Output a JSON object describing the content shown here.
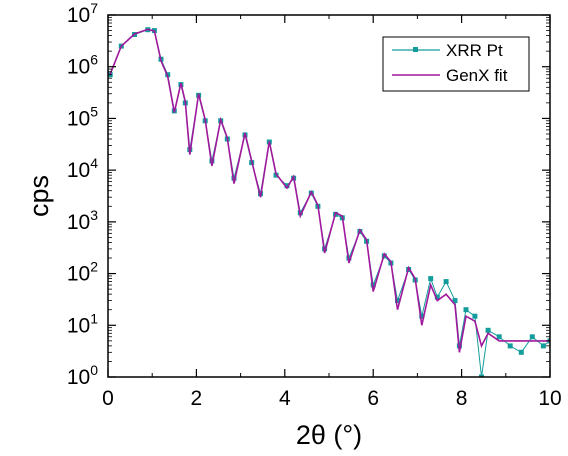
{
  "chart_data": {
    "type": "line",
    "title": "",
    "xlabel": "2θ (°)",
    "ylabel": "cps",
    "xlim": [
      0,
      10
    ],
    "ylim": [
      1,
      10000000
    ],
    "yscale": "log",
    "grid": false,
    "legend_position": "top-right",
    "x_ticks": [
      "0",
      "2",
      "4",
      "6",
      "8",
      "10"
    ],
    "y_ticks": [
      {
        "base": "10",
        "exp": "0"
      },
      {
        "base": "10",
        "exp": "1"
      },
      {
        "base": "10",
        "exp": "2"
      },
      {
        "base": "10",
        "exp": "3"
      },
      {
        "base": "10",
        "exp": "4"
      },
      {
        "base": "10",
        "exp": "5"
      },
      {
        "base": "10",
        "exp": "6"
      },
      {
        "base": "10",
        "exp": "7"
      }
    ],
    "series": [
      {
        "name": "XRR Pt",
        "color": "#149c9c",
        "style": "line-with-square-markers",
        "x": [
          0.05,
          0.3,
          0.6,
          0.9,
          1.05,
          1.2,
          1.35,
          1.5,
          1.65,
          1.75,
          1.85,
          2.05,
          2.2,
          2.35,
          2.55,
          2.7,
          2.85,
          3.1,
          3.25,
          3.45,
          3.65,
          3.8,
          4.05,
          4.2,
          4.35,
          4.6,
          4.75,
          4.9,
          5.15,
          5.3,
          5.45,
          5.7,
          5.85,
          6.0,
          6.25,
          6.4,
          6.55,
          6.8,
          6.95,
          7.1,
          7.3,
          7.45,
          7.65,
          7.85,
          7.95,
          8.1,
          8.3,
          8.45,
          8.6,
          8.85,
          9.1,
          9.35,
          9.6,
          9.85,
          10.0
        ],
        "y": [
          700000,
          2500000,
          4200000,
          5200000,
          5000000,
          1400000,
          700000,
          140000,
          450000,
          200000,
          25000,
          280000,
          90000,
          15000,
          90000,
          40000,
          7000,
          48000,
          14000,
          3500,
          35000,
          8000,
          5000,
          7000,
          1500,
          3600,
          2000,
          300,
          1400,
          1200,
          200,
          650,
          420,
          60,
          220,
          160,
          30,
          120,
          75,
          15,
          80,
          35,
          70,
          30,
          4,
          20,
          15,
          1,
          8,
          6,
          4,
          3,
          6,
          4,
          5
        ]
      },
      {
        "name": "GenX fit",
        "color": "#a0189c",
        "style": "line",
        "x": [
          0.05,
          0.3,
          0.6,
          0.9,
          1.05,
          1.2,
          1.35,
          1.5,
          1.65,
          1.75,
          1.85,
          2.05,
          2.2,
          2.35,
          2.55,
          2.7,
          2.85,
          3.1,
          3.25,
          3.45,
          3.65,
          3.8,
          4.05,
          4.2,
          4.35,
          4.6,
          4.75,
          4.9,
          5.15,
          5.3,
          5.45,
          5.7,
          5.85,
          6.0,
          6.25,
          6.4,
          6.55,
          6.8,
          6.95,
          7.1,
          7.3,
          7.45,
          7.65,
          7.85,
          7.95,
          8.1,
          8.3,
          8.45,
          8.6,
          8.85,
          9.1,
          9.35,
          9.6,
          9.85,
          10.0
        ],
        "y": [
          720000,
          2500000,
          4300000,
          5300000,
          4900000,
          1300000,
          650000,
          130000,
          480000,
          210000,
          20000,
          300000,
          95000,
          12000,
          95000,
          42000,
          5500,
          52000,
          15000,
          3000,
          36000,
          8500,
          4500,
          7500,
          1300,
          3800,
          2100,
          250,
          1500,
          1300,
          160,
          700,
          450,
          45,
          240,
          170,
          20,
          130,
          80,
          10,
          60,
          30,
          40,
          25,
          3,
          15,
          12,
          4,
          7,
          5,
          5,
          5,
          5,
          5,
          5
        ]
      }
    ]
  }
}
